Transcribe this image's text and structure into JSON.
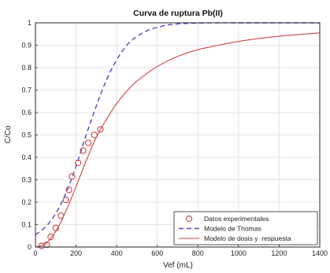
{
  "chart_data": {
    "type": "line",
    "title": "Curva de ruptura Pb(II)",
    "xlabel": "Vef (mL)",
    "ylabel": "C/Co",
    "xlim": [
      0,
      1400
    ],
    "ylim": [
      0,
      1
    ],
    "xticks": [
      0,
      200,
      400,
      600,
      800,
      1000,
      1200,
      1400
    ],
    "yticks": [
      0,
      0.1,
      0.2,
      0.3,
      0.4,
      0.5,
      0.6,
      0.7,
      0.8,
      0.9,
      1
    ],
    "xtick_labels": [
      "0",
      "200",
      "400",
      "600",
      "800",
      "1000",
      "1200",
      "1400"
    ],
    "ytick_labels": [
      "0",
      "0.1",
      "0.2",
      "0.3",
      "0.4",
      "0.5",
      "0.6",
      "0.7",
      "0.8",
      "0.9",
      "1"
    ],
    "grid": true,
    "legend_position": "bottom-right",
    "series": [
      {
        "name": "Datos experimentales",
        "style": "markers",
        "color": "#d04545",
        "x": [
          30,
          55,
          75,
          100,
          125,
          150,
          165,
          180,
          210,
          235,
          260,
          290,
          320
        ],
        "y": [
          0.005,
          0.01,
          0.045,
          0.085,
          0.14,
          0.21,
          0.255,
          0.315,
          0.375,
          0.43,
          0.465,
          0.5,
          0.525
        ]
      },
      {
        "name": "Modelo de Thomas",
        "style": "dashed",
        "color": "#4a4acc",
        "x": [
          0,
          50,
          100,
          150,
          200,
          250,
          300,
          350,
          400,
          450,
          500,
          550,
          600,
          650,
          700,
          800,
          900,
          1000,
          1200,
          1400
        ],
        "y": [
          0.055,
          0.09,
          0.15,
          0.24,
          0.36,
          0.5,
          0.63,
          0.745,
          0.835,
          0.9,
          0.94,
          0.965,
          0.98,
          0.99,
          0.995,
          0.999,
          1,
          1,
          1,
          1
        ]
      },
      {
        "name": "Modelo de dosis y  respuesta",
        "style": "solid",
        "color": "#d04545",
        "x": [
          0,
          50,
          100,
          150,
          200,
          250,
          300,
          350,
          400,
          450,
          500,
          600,
          700,
          800,
          900,
          1000,
          1100,
          1200,
          1300,
          1400
        ],
        "y": [
          0,
          0.015,
          0.07,
          0.16,
          0.27,
          0.385,
          0.49,
          0.57,
          0.64,
          0.695,
          0.74,
          0.805,
          0.85,
          0.88,
          0.9,
          0.917,
          0.93,
          0.94,
          0.948,
          0.955
        ]
      }
    ]
  }
}
